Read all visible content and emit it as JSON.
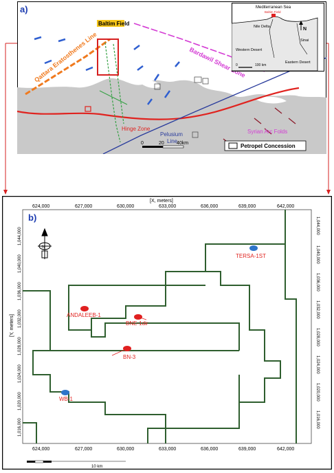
{
  "panel_a": {
    "label": "a)",
    "baltim_field": "Baltim Field",
    "qattara_line": "Qattara Eratosthenes Line",
    "bardawil_zone": "Bardawil Shear Zone",
    "hinge_zone": "Hinge Zone",
    "pelusium_line": "Pelusium\nLine",
    "pelusium_1": "Pelusium",
    "pelusium_2": "Line",
    "syrian_arc": "Syrian Arc Folds",
    "scale_0": "0",
    "scale_20": "20",
    "scale_40": "40km",
    "legend_label": "Petropel Concession",
    "inset": {
      "sea": "Mediterranean Sea",
      "baltim": "Baltim Field",
      "nile_delta": "Nile Delta",
      "sinai": "Sinai",
      "western": "Western Desert",
      "eastern": "Eastern Desert",
      "scale": "100 km",
      "scale0": "0",
      "north": "N"
    }
  },
  "panel_b": {
    "label": "b)",
    "axis_title_top": "[X, meters]",
    "axis_title_left": "[Y, meters]",
    "x_ticks": [
      "624,000",
      "627,000",
      "630,000",
      "633,000",
      "636,000",
      "639,000",
      "642,000"
    ],
    "y_ticks": [
      "1,044,000",
      "1,040,000",
      "1,036,000",
      "1,032,000",
      "1,028,000",
      "1,024,000",
      "1,020,000",
      "1,016,000"
    ],
    "north": "N",
    "wells": [
      {
        "name": "TERSA-1ST",
        "color": "#2e75c9"
      },
      {
        "name": "ANDALEEB-1",
        "color": "#e02020"
      },
      {
        "name": "BNE-1dir",
        "color": "#e02020"
      },
      {
        "name": "BN-3",
        "color": "#e02020"
      },
      {
        "name": "WB-1",
        "color": "#2e75c9"
      }
    ],
    "scale_text": "10 km"
  },
  "colors": {
    "sea": "#ffffff",
    "land": "#c9c9c9",
    "concession": "#2e5e2e",
    "qattara": "#f07a1e",
    "bardawil": "#d43bd4",
    "hinge": "#e0231f",
    "pelusium": "#2a3c9c",
    "callout": "#d62020"
  }
}
